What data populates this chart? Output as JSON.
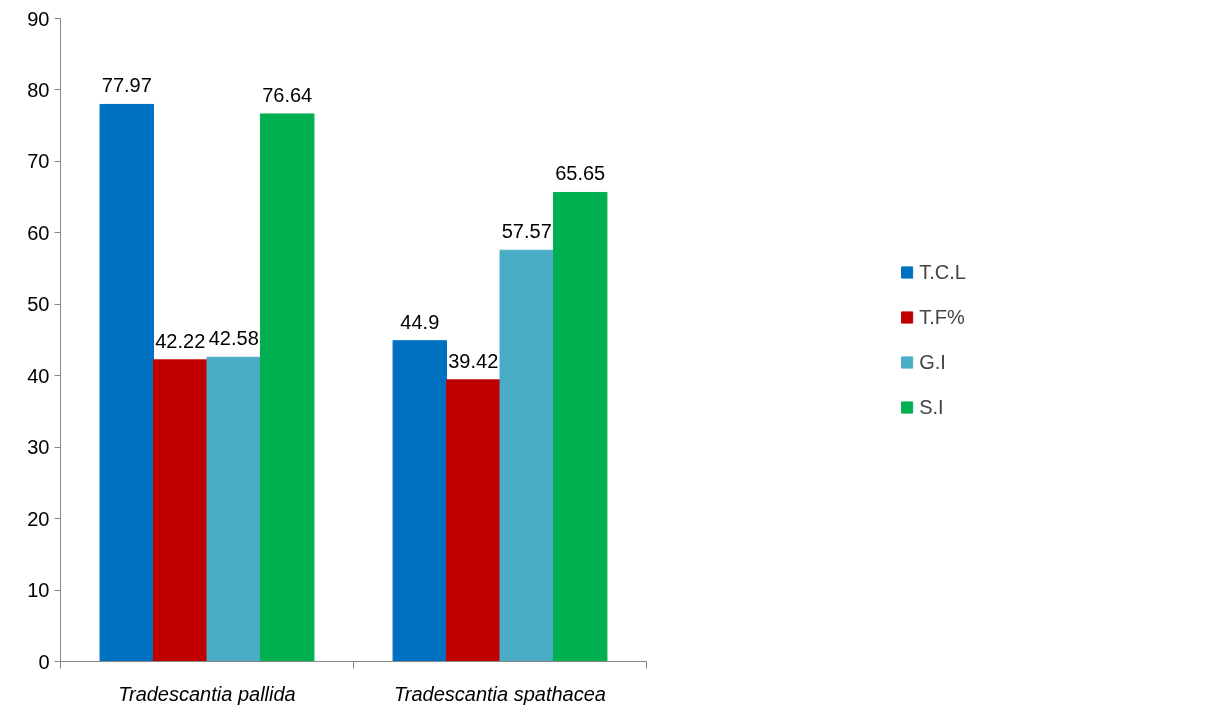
{
  "chart_data": {
    "type": "bar",
    "categories": [
      "Tradescantia pallida",
      "Tradescantia spathacea"
    ],
    "series": [
      {
        "name": "T.C.L",
        "color": "#0070c0",
        "values": [
          77.97,
          44.9
        ]
      },
      {
        "name": "T.F%",
        "color": "#c00000",
        "values": [
          42.22,
          39.42
        ]
      },
      {
        "name": "G.I",
        "color": "#4bacc6",
        "values": [
          42.58,
          57.57
        ]
      },
      {
        "name": "S.I",
        "color": "#00b050",
        "values": [
          76.64,
          65.65
        ]
      }
    ],
    "ylim": [
      0,
      90
    ],
    "yticks": [
      0,
      10,
      20,
      30,
      40,
      50,
      60,
      70,
      80,
      90
    ],
    "grid": false,
    "legend": "right",
    "data_labels": true
  }
}
